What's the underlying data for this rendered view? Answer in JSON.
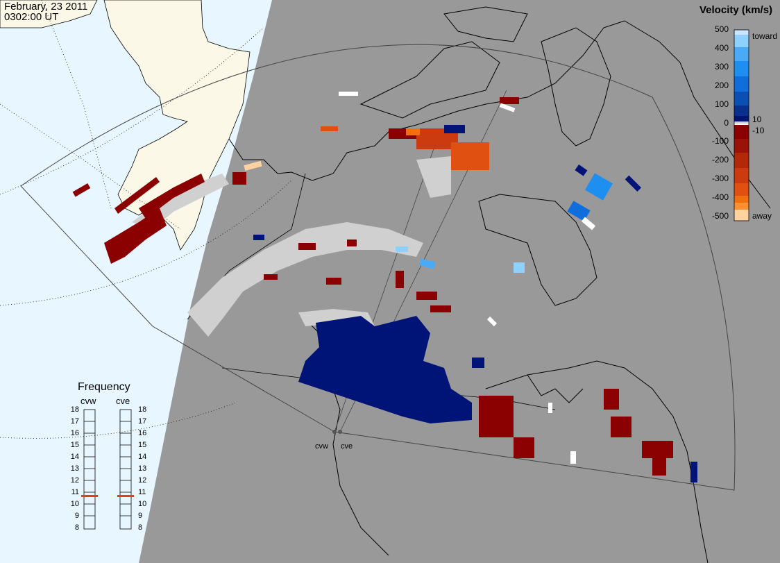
{
  "header": {
    "date": "February, 23 2011",
    "time": "0302:00 UT"
  },
  "colorbar": {
    "title": "Velocity (km/s)",
    "ticks": [
      "500",
      "400",
      "300",
      "200",
      "100",
      "0",
      "-100",
      "-200",
      "-300",
      "-400",
      "-500"
    ],
    "inner_ticks": [
      "10",
      "-10"
    ],
    "toward_label": "toward",
    "away_label": "away",
    "colors": {
      "toward": [
        "#c8e6ff",
        "#8ed0ff",
        "#4aaaf5",
        "#1e8ef0",
        "#0f6edc",
        "#0a50b4",
        "#08308c",
        "#001478"
      ],
      "away": [
        "#8b0000",
        "#9a1208",
        "#b4280a",
        "#cc3a10",
        "#e05010",
        "#f07010",
        "#fa9030",
        "#ffd2a0"
      ],
      "ground_scatter": "#d0d0d0",
      "zero": "#ffffff"
    }
  },
  "frequency": {
    "title": "Frequency",
    "radars": [
      "cvw",
      "cve"
    ],
    "ticks": [
      "18",
      "17",
      "16",
      "15",
      "14",
      "13",
      "12",
      "11",
      "10",
      "9",
      "8"
    ],
    "cvw_mhz": 10.9,
    "cve_mhz": 10.9,
    "marker_color": "#e04010"
  },
  "map": {
    "radar_labels": [
      "cvw",
      "cve"
    ],
    "night_color": "#999999",
    "day_ocean_color": "#e8f6ff",
    "day_land_color": "#fbf8e8"
  }
}
